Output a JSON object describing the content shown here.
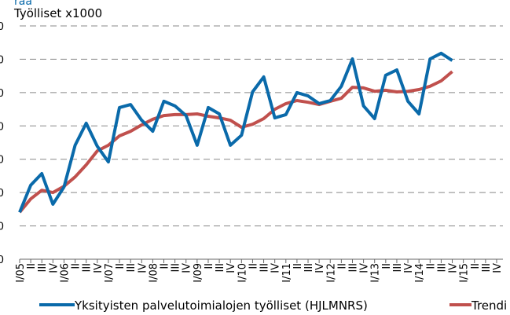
{
  "chart_data": {
    "type": "line",
    "title": "raa",
    "y_label": "Työlliset x1000",
    "categories": [
      "I/05",
      "II",
      "III",
      "IV",
      "I/06",
      "II",
      "III",
      "IV",
      "I/07",
      "II",
      "III",
      "IV",
      "I/08",
      "II",
      "III",
      "IV",
      "I/09",
      "II",
      "III",
      "IV",
      "I/10",
      "II",
      "III",
      "IV",
      "I/11",
      "II",
      "III",
      "IV",
      "I/12",
      "II",
      "III",
      "IV",
      "I/13",
      "II",
      "III",
      "IV",
      "I/14",
      "II",
      "III",
      "IV",
      "I/15",
      "II",
      "III",
      "IV"
    ],
    "series": [
      {
        "name": "Yksityisten palvelutoimialojen työlliset (HJLMNRS)",
        "color": "#0a6aaa",
        "values": [
          594.1,
          602.2,
          605.7,
          596.5,
          601.7,
          614.2,
          620.8,
          613.9,
          609.2,
          625.5,
          626.4,
          621.7,
          618.4,
          627.4,
          626.0,
          623.1,
          614.2,
          625.5,
          623.6,
          614.2,
          617.2,
          630.2,
          634.7,
          622.4,
          623.4,
          630.0,
          629.0,
          626.7,
          627.6,
          631.9,
          640.1,
          626.0,
          622.2,
          635.2,
          636.8,
          627.4,
          623.6,
          640.1,
          641.8,
          639.6,
          null,
          null,
          null,
          null
        ]
      },
      {
        "name": "Trendi",
        "color": "#c0504d",
        "values": [
          594.1,
          598.1,
          600.7,
          600.0,
          601.9,
          604.7,
          608.3,
          612.5,
          614.2,
          617.0,
          618.4,
          620.3,
          622.0,
          623.1,
          623.4,
          623.4,
          623.6,
          622.9,
          622.4,
          621.7,
          619.6,
          620.5,
          622.2,
          625.0,
          626.7,
          627.6,
          627.1,
          626.4,
          627.4,
          628.3,
          631.6,
          631.4,
          630.4,
          630.7,
          630.2,
          630.4,
          630.9,
          631.9,
          633.5,
          636.3,
          null,
          null,
          null,
          null
        ]
      }
    ],
    "ylim": [
      580,
      650
    ],
    "yticks": [
      580,
      590,
      600,
      610,
      620,
      630,
      640,
      650
    ],
    "grid": true,
    "legend": "bottom"
  }
}
